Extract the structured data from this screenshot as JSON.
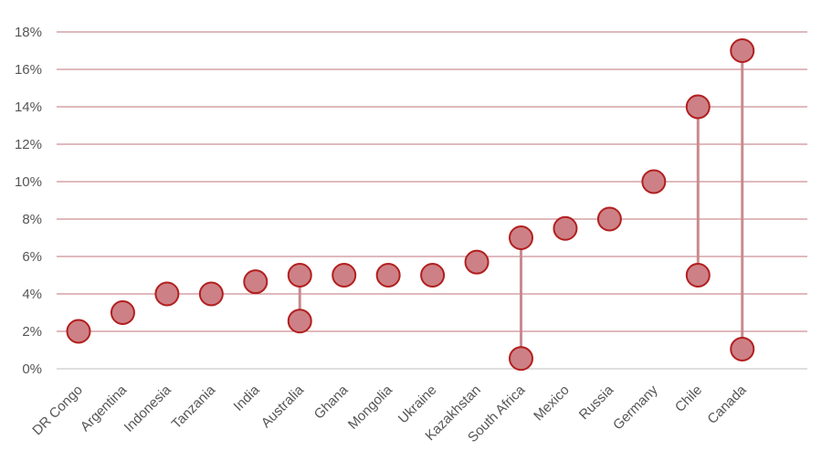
{
  "chart_data": {
    "type": "scatter",
    "title": "",
    "xlabel": "",
    "ylabel": "",
    "ylim": [
      0,
      18
    ],
    "yticks": [
      "0%",
      "2%",
      "4%",
      "6%",
      "8%",
      "10%",
      "12%",
      "14%",
      "16%",
      "18%"
    ],
    "grid": true,
    "legend": "none",
    "colors": {
      "marker_fill": "#cd8186",
      "marker_stroke": "#b21f1f",
      "gridline": "#c0737b",
      "range_line": "#c98a90"
    },
    "categories": [
      "DR Congo",
      "Argentina",
      "Indonesia",
      "Tanzania",
      "India",
      "Australia",
      "Ghana",
      "Mongolia",
      "Ukraine",
      "Kazakhstan",
      "South Africa",
      "Mexico",
      "Russia",
      "Germany",
      "Chile",
      "Canada"
    ],
    "points": [
      [
        2.0
      ],
      [
        3.0
      ],
      [
        4.0
      ],
      [
        4.0
      ],
      [
        4.65
      ],
      [
        2.55,
        5.0
      ],
      [
        5.0
      ],
      [
        5.0
      ],
      [
        5.0
      ],
      [
        5.7
      ],
      [
        0.55,
        7.0
      ],
      [
        7.5
      ],
      [
        8.0
      ],
      [
        10.0
      ],
      [
        5.0,
        14.0
      ],
      [
        1.05,
        17.0
      ]
    ]
  }
}
